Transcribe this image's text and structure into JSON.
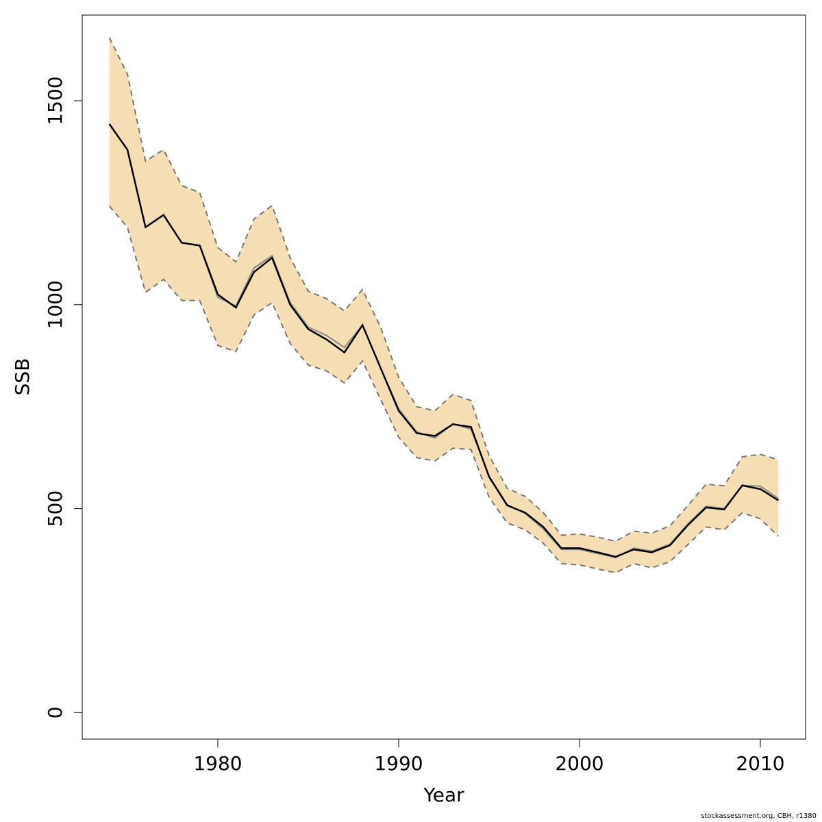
{
  "chart_data": {
    "type": "line",
    "xlabel": "Year",
    "ylabel": "SSB",
    "xlim": [
      1972.5,
      2012.5
    ],
    "ylim": [
      -65,
      1710
    ],
    "xticks": [
      1980,
      1990,
      2000,
      2010
    ],
    "yticks": [
      0,
      500,
      1000,
      1500
    ],
    "grid": false,
    "colors": {
      "band": "#f5deb3",
      "bound_line": "#777777",
      "estimate": "#000000",
      "estimate_alt": "#888888",
      "frame": "#000000"
    },
    "x": [
      1974,
      1975,
      1976,
      1977,
      1978,
      1979,
      1980,
      1981,
      1982,
      1983,
      1984,
      1985,
      1986,
      1987,
      1988,
      1989,
      1990,
      1991,
      1992,
      1993,
      1994,
      1995,
      1996,
      1997,
      1998,
      1999,
      2000,
      2001,
      2002,
      2003,
      2004,
      2005,
      2006,
      2007,
      2008,
      2009,
      2010,
      2011
    ],
    "series": [
      {
        "role": "estimate",
        "values": [
          1443,
          1380,
          1190,
          1220,
          1152,
          1145,
          1025,
          993,
          1080,
          1115,
          1000,
          940,
          915,
          883,
          950,
          845,
          740,
          685,
          678,
          707,
          700,
          578,
          508,
          490,
          455,
          403,
          403,
          393,
          382,
          400,
          393,
          410,
          460,
          503,
          498,
          557,
          548,
          520
        ]
      },
      {
        "role": "estimate_alt",
        "values": [
          1443,
          1380,
          1190,
          1220,
          1152,
          1145,
          1018,
          997,
          1090,
          1120,
          1005,
          945,
          925,
          895,
          950,
          845,
          745,
          688,
          673,
          708,
          695,
          580,
          510,
          488,
          450,
          400,
          400,
          390,
          380,
          403,
          396,
          413,
          463,
          506,
          500,
          557,
          555,
          525
        ]
      },
      {
        "role": "upper",
        "values": [
          1655,
          1565,
          1352,
          1380,
          1292,
          1275,
          1140,
          1105,
          1210,
          1243,
          1115,
          1033,
          1015,
          985,
          1037,
          945,
          822,
          750,
          740,
          780,
          765,
          630,
          550,
          530,
          490,
          435,
          438,
          430,
          420,
          445,
          440,
          458,
          508,
          560,
          556,
          627,
          633,
          620
        ]
      },
      {
        "role": "lower",
        "values": [
          1242,
          1190,
          1030,
          1062,
          1010,
          1010,
          900,
          885,
          975,
          1005,
          905,
          852,
          838,
          808,
          862,
          768,
          675,
          625,
          617,
          648,
          645,
          528,
          465,
          448,
          415,
          365,
          362,
          352,
          343,
          365,
          355,
          370,
          412,
          455,
          448,
          490,
          475,
          432
        ]
      }
    ]
  },
  "credit_text": "stockassessment.org, CBH, r1380"
}
